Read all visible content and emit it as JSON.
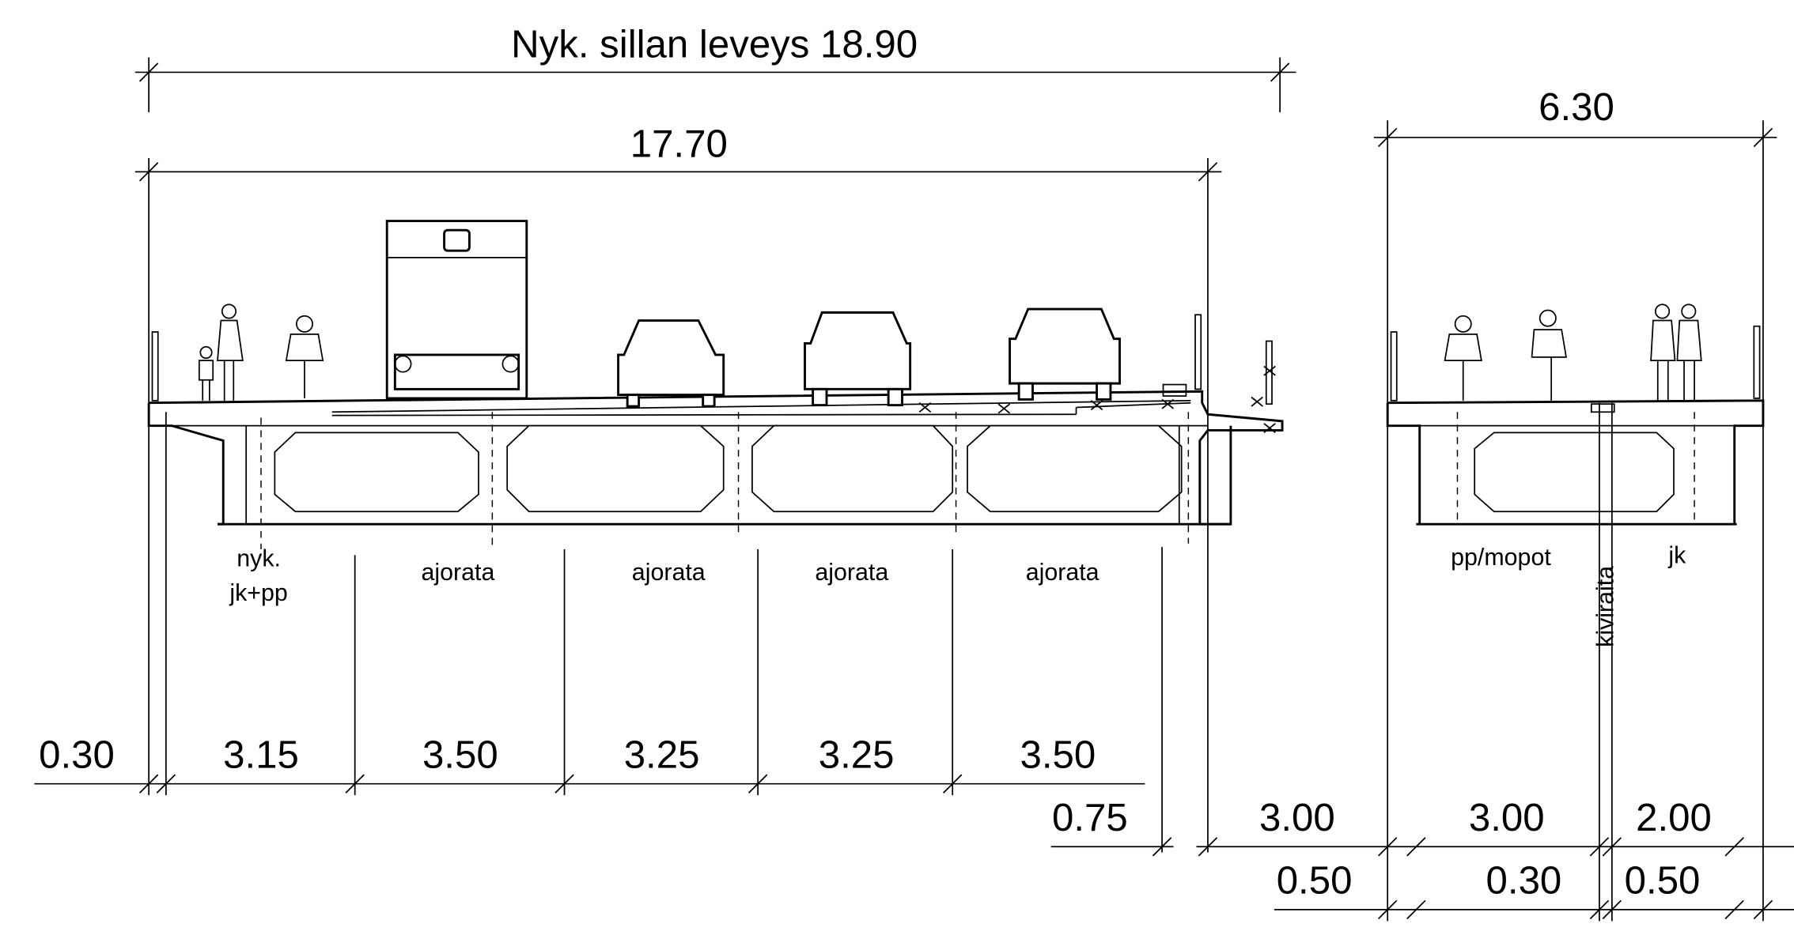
{
  "title": "Nyk. sillan leveys 18.90",
  "main_width": "17.70",
  "side_width": "6.30",
  "lane_labels": [
    "nyk.",
    "jk+pp",
    "ajorata",
    "ajorata",
    "ajorata",
    "ajorata",
    "pp/mopot",
    "kiviraita",
    "jk"
  ],
  "dimensions": [
    "0.30",
    "3.15",
    "3.50",
    "3.25",
    "3.25",
    "3.50",
    "0.75",
    "3.00",
    "3.00",
    "2.00",
    "0.50",
    "0.30",
    "0.50"
  ]
}
